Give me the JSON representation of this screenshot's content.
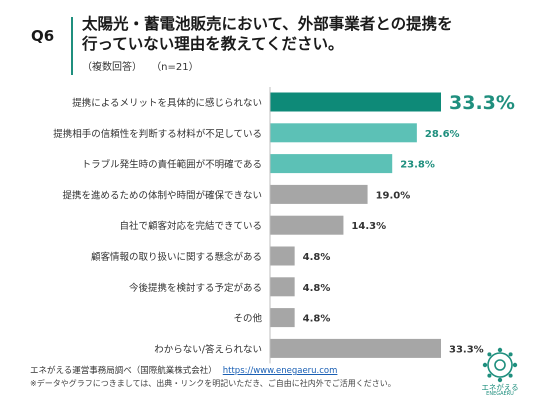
{
  "header": {
    "q_label": "Q6",
    "title": "太陽光・蓄電池販売において、外部事業者との提携を\n行っていない理由を教えてください。",
    "multi_answer": "（複数回答）",
    "sample_size": "（n=21）"
  },
  "chart_data": {
    "type": "bar",
    "orientation": "horizontal",
    "categories": [
      "提携によるメリットを具体的に感じられない",
      "提携相手の信頼性を判断する材料が不足している",
      "トラブル発生時の責任範囲が不明確である",
      "提携を進めるための体制や時間が確保できない",
      "自社で顧客対応を完結できている",
      "顧客情報の取り扱いに関する懸念がある",
      "今後提携を検討する予定がある",
      "その他",
      "わからない/答えられない"
    ],
    "values": [
      33.3,
      28.6,
      23.8,
      19.0,
      14.3,
      4.8,
      4.8,
      4.8,
      33.3
    ],
    "value_labels": [
      "33.3%",
      "28.6%",
      "23.8%",
      "19.0%",
      "14.3%",
      "4.8%",
      "4.8%",
      "4.8%",
      "33.3%"
    ],
    "xlim": [
      0,
      33.3
    ],
    "grid": false,
    "colors": {
      "top": "#0e8a78",
      "highlight": "#5cc1b6",
      "other": "#a6a6a6",
      "label_highlight": "#1f8f7e",
      "label_other": "#333333"
    },
    "color_groups": [
      "top",
      "highlight",
      "highlight",
      "other",
      "other",
      "other",
      "other",
      "other",
      "other"
    ]
  },
  "footer": {
    "source": "エネがえる運営事務局調べ（国際航業株式会社）",
    "url": "https://www.enegaeru.com",
    "note": "※データやグラフにつきましては、出典・リンクを明記いただき、ご自由に社内外でご活用ください。"
  },
  "logo": {
    "name": "エネがえる",
    "sub": "ENEGAERU",
    "color": "#1f8f7e",
    "icon": "enegaeru-emblem-icon"
  }
}
